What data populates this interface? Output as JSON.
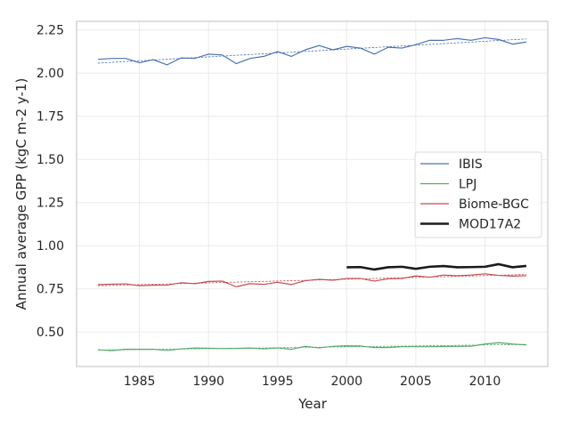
{
  "chart_data": {
    "type": "line",
    "xlabel": "Year",
    "ylabel": "Annual average GPP (kgC m-2 y-1)",
    "xlim": [
      1980.45,
      2014.55
    ],
    "ylim": [
      0.3,
      2.3
    ],
    "xticks": [
      1985,
      1990,
      1995,
      2000,
      2005,
      2010
    ],
    "yticks": [
      0.5,
      0.75,
      1.0,
      1.25,
      1.5,
      1.75,
      2.0,
      2.25
    ],
    "xtick_labels": [
      "1985",
      "1990",
      "1995",
      "2000",
      "2005",
      "2010"
    ],
    "ytick_labels": [
      "0.50",
      "0.75",
      "1.00",
      "1.25",
      "1.50",
      "1.75",
      "2.00",
      "2.25"
    ],
    "grid": true,
    "legend_position": "center-right",
    "series": [
      {
        "name": "IBIS",
        "color": "#4c72b0",
        "x": [
          1982,
          1983,
          1984,
          1985,
          1986,
          1987,
          1988,
          1989,
          1990,
          1991,
          1992,
          1993,
          1994,
          1995,
          1996,
          1997,
          1998,
          1999,
          2000,
          2001,
          2002,
          2003,
          2004,
          2005,
          2006,
          2007,
          2008,
          2009,
          2010,
          2011,
          2012,
          2013
        ],
        "values": [
          2.08,
          2.085,
          2.085,
          2.06,
          2.078,
          2.048,
          2.088,
          2.085,
          2.11,
          2.105,
          2.055,
          2.085,
          2.097,
          2.125,
          2.097,
          2.135,
          2.16,
          2.135,
          2.155,
          2.145,
          2.11,
          2.15,
          2.145,
          2.165,
          2.19,
          2.19,
          2.2,
          2.19,
          2.205,
          2.195,
          2.168,
          2.18
        ],
        "trend": [
          2.058,
          2.198
        ]
      },
      {
        "name": "LPJ",
        "color": "#55a868",
        "x": [
          1982,
          1983,
          1984,
          1985,
          1986,
          1987,
          1988,
          1989,
          1990,
          1991,
          1992,
          1993,
          1994,
          1995,
          1996,
          1997,
          1998,
          1999,
          2000,
          2001,
          2002,
          2003,
          2004,
          2005,
          2006,
          2007,
          2008,
          2009,
          2010,
          2011,
          2012,
          2013
        ],
        "values": [
          0.397,
          0.392,
          0.4,
          0.4,
          0.4,
          0.393,
          0.402,
          0.407,
          0.406,
          0.404,
          0.405,
          0.407,
          0.402,
          0.408,
          0.4,
          0.417,
          0.408,
          0.417,
          0.42,
          0.419,
          0.41,
          0.41,
          0.415,
          0.415,
          0.415,
          0.416,
          0.417,
          0.418,
          0.43,
          0.438,
          0.43,
          0.425
        ],
        "trend": [
          0.395,
          0.428
        ]
      },
      {
        "name": "Biome-BGC",
        "color": "#c44e52",
        "x": [
          1982,
          1983,
          1984,
          1985,
          1986,
          1987,
          1988,
          1989,
          1990,
          1991,
          1992,
          1993,
          1994,
          1995,
          1996,
          1997,
          1998,
          1999,
          2000,
          2001,
          2002,
          2003,
          2004,
          2005,
          2006,
          2007,
          2008,
          2009,
          2010,
          2011,
          2012,
          2013
        ],
        "values": [
          0.775,
          0.777,
          0.779,
          0.768,
          0.771,
          0.772,
          0.785,
          0.78,
          0.793,
          0.795,
          0.762,
          0.78,
          0.776,
          0.788,
          0.775,
          0.797,
          0.805,
          0.8,
          0.81,
          0.81,
          0.795,
          0.808,
          0.81,
          0.825,
          0.817,
          0.83,
          0.826,
          0.83,
          0.837,
          0.828,
          0.824,
          0.826
        ],
        "trend": [
          0.768,
          0.833
        ]
      },
      {
        "name": "MOD17A2",
        "color": "#1a1a1a",
        "x": [
          2000,
          2001,
          2002,
          2003,
          2004,
          2005,
          2006,
          2007,
          2008,
          2009,
          2010,
          2011,
          2012,
          2013
        ],
        "values": [
          0.875,
          0.876,
          0.862,
          0.875,
          0.878,
          0.866,
          0.878,
          0.882,
          0.875,
          0.876,
          0.878,
          0.893,
          0.875,
          0.883
        ]
      }
    ]
  }
}
